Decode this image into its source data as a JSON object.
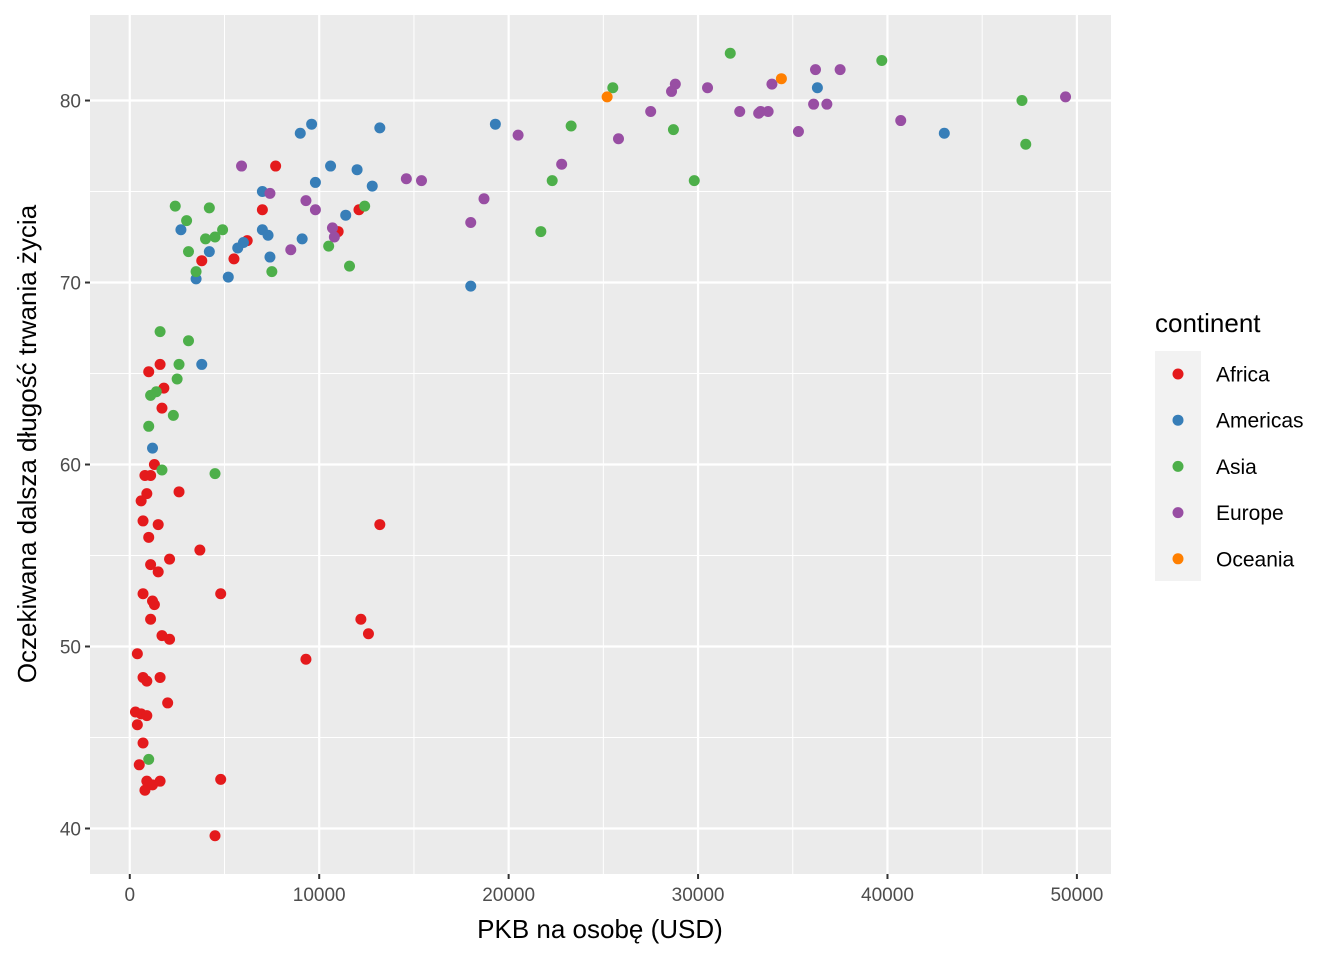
{
  "chart_data": {
    "type": "scatter",
    "title": "",
    "xlabel": "PKB na osobę (USD)",
    "ylabel": "Oczekiwana dalsza długość trwania życia",
    "xlim": [
      -2100,
      51800
    ],
    "ylim": [
      37.5,
      84.7
    ],
    "x_ticks": [
      0,
      10000,
      20000,
      30000,
      40000,
      50000
    ],
    "x_tick_labels": [
      "0",
      "10000",
      "20000",
      "30000",
      "40000",
      "50000"
    ],
    "y_ticks": [
      40,
      50,
      60,
      70,
      80
    ],
    "y_tick_labels": [
      "40",
      "50",
      "60",
      "70",
      "80"
    ],
    "grid": true,
    "background": "#EBEBEB",
    "legend": {
      "title": "continent",
      "position": "right",
      "entries": [
        {
          "name": "Africa",
          "color": "#E41A1C"
        },
        {
          "name": "Americas",
          "color": "#377EB8"
        },
        {
          "name": "Asia",
          "color": "#4DAF4A"
        },
        {
          "name": "Europe",
          "color": "#984EA3"
        },
        {
          "name": "Oceania",
          "color": "#FF7F00"
        }
      ]
    },
    "series": [
      {
        "name": "Africa",
        "color": "#E41A1C",
        "points": [
          [
            6200,
            72.3
          ],
          [
            5500,
            71.3
          ],
          [
            3800,
            71.2
          ],
          [
            7000,
            74.0
          ],
          [
            7700,
            76.4
          ],
          [
            11000,
            72.8
          ],
          [
            12100,
            74.0
          ],
          [
            1000,
            65.1
          ],
          [
            1600,
            65.5
          ],
          [
            1800,
            64.2
          ],
          [
            1700,
            63.1
          ],
          [
            1300,
            60.0
          ],
          [
            1100,
            59.4
          ],
          [
            800,
            59.4
          ],
          [
            900,
            58.4
          ],
          [
            600,
            58.0
          ],
          [
            2600,
            58.5
          ],
          [
            700,
            56.9
          ],
          [
            1500,
            56.7
          ],
          [
            1000,
            56.0
          ],
          [
            13200,
            56.7
          ],
          [
            3700,
            55.3
          ],
          [
            2100,
            54.8
          ],
          [
            1100,
            54.5
          ],
          [
            1500,
            54.1
          ],
          [
            700,
            52.9
          ],
          [
            4800,
            52.9
          ],
          [
            1200,
            52.5
          ],
          [
            1300,
            52.3
          ],
          [
            1100,
            51.5
          ],
          [
            12200,
            51.5
          ],
          [
            1700,
            50.6
          ],
          [
            2100,
            50.4
          ],
          [
            12600,
            50.7
          ],
          [
            400,
            49.6
          ],
          [
            9300,
            49.3
          ],
          [
            700,
            48.3
          ],
          [
            1600,
            48.3
          ],
          [
            900,
            48.1
          ],
          [
            2000,
            46.9
          ],
          [
            300,
            46.4
          ],
          [
            600,
            46.3
          ],
          [
            900,
            46.2
          ],
          [
            400,
            45.7
          ],
          [
            700,
            44.7
          ],
          [
            500,
            43.5
          ],
          [
            900,
            42.6
          ],
          [
            1200,
            42.4
          ],
          [
            1600,
            42.6
          ],
          [
            4800,
            42.7
          ],
          [
            800,
            42.1
          ],
          [
            4500,
            39.6
          ]
        ]
      },
      {
        "name": "Americas",
        "color": "#377EB8",
        "points": [
          [
            9000,
            78.2
          ],
          [
            9600,
            78.7
          ],
          [
            13200,
            78.5
          ],
          [
            7000,
            75.0
          ],
          [
            9800,
            75.5
          ],
          [
            10600,
            76.4
          ],
          [
            12000,
            76.2
          ],
          [
            12800,
            75.3
          ],
          [
            2700,
            72.9
          ],
          [
            7000,
            72.9
          ],
          [
            7300,
            72.6
          ],
          [
            6000,
            72.2
          ],
          [
            5700,
            71.9
          ],
          [
            4200,
            71.7
          ],
          [
            7400,
            71.4
          ],
          [
            9100,
            72.4
          ],
          [
            11400,
            73.7
          ],
          [
            3500,
            70.2
          ],
          [
            5200,
            70.3
          ],
          [
            18000,
            69.8
          ],
          [
            3800,
            65.5
          ],
          [
            1200,
            60.9
          ],
          [
            19300,
            78.7
          ],
          [
            36300,
            80.7
          ],
          [
            43000,
            78.2
          ]
        ]
      },
      {
        "name": "Asia",
        "color": "#4DAF4A",
        "points": [
          [
            2400,
            74.2
          ],
          [
            3000,
            73.4
          ],
          [
            4200,
            74.1
          ],
          [
            4900,
            72.9
          ],
          [
            4500,
            72.5
          ],
          [
            4000,
            72.4
          ],
          [
            3100,
            71.7
          ],
          [
            3500,
            70.6
          ],
          [
            7500,
            70.6
          ],
          [
            10500,
            72.0
          ],
          [
            11600,
            70.9
          ],
          [
            12400,
            74.2
          ],
          [
            1600,
            67.3
          ],
          [
            3100,
            66.8
          ],
          [
            2600,
            65.5
          ],
          [
            2500,
            64.7
          ],
          [
            1400,
            64.0
          ],
          [
            1100,
            63.8
          ],
          [
            2300,
            62.7
          ],
          [
            1000,
            62.1
          ],
          [
            1700,
            59.7
          ],
          [
            4500,
            59.5
          ],
          [
            1000,
            43.8
          ],
          [
            25500,
            80.7
          ],
          [
            23300,
            78.6
          ],
          [
            28700,
            78.4
          ],
          [
            31700,
            82.6
          ],
          [
            39700,
            82.2
          ],
          [
            47100,
            80.0
          ],
          [
            47300,
            77.6
          ],
          [
            22300,
            75.6
          ],
          [
            29800,
            75.6
          ],
          [
            21700,
            72.8
          ]
        ]
      },
      {
        "name": "Europe",
        "color": "#984EA3",
        "points": [
          [
            5900,
            76.4
          ],
          [
            7400,
            74.9
          ],
          [
            9300,
            74.5
          ],
          [
            9800,
            74.0
          ],
          [
            8500,
            71.8
          ],
          [
            10700,
            73.0
          ],
          [
            10800,
            72.5
          ],
          [
            14600,
            75.7
          ],
          [
            15400,
            75.6
          ],
          [
            18000,
            73.3
          ],
          [
            18700,
            74.6
          ],
          [
            20500,
            78.1
          ],
          [
            22800,
            76.5
          ],
          [
            25800,
            77.9
          ],
          [
            27500,
            79.4
          ],
          [
            28600,
            80.5
          ],
          [
            28800,
            80.9
          ],
          [
            30500,
            80.7
          ],
          [
            32200,
            79.4
          ],
          [
            33200,
            79.3
          ],
          [
            33300,
            79.4
          ],
          [
            33700,
            79.4
          ],
          [
            33900,
            80.9
          ],
          [
            35300,
            78.3
          ],
          [
            36100,
            79.8
          ],
          [
            36200,
            81.7
          ],
          [
            36800,
            79.8
          ],
          [
            37500,
            81.7
          ],
          [
            40700,
            78.9
          ],
          [
            49400,
            80.2
          ]
        ]
      },
      {
        "name": "Oceania",
        "color": "#FF7F00",
        "points": [
          [
            25200,
            80.2
          ],
          [
            34400,
            81.2
          ]
        ]
      }
    ]
  }
}
